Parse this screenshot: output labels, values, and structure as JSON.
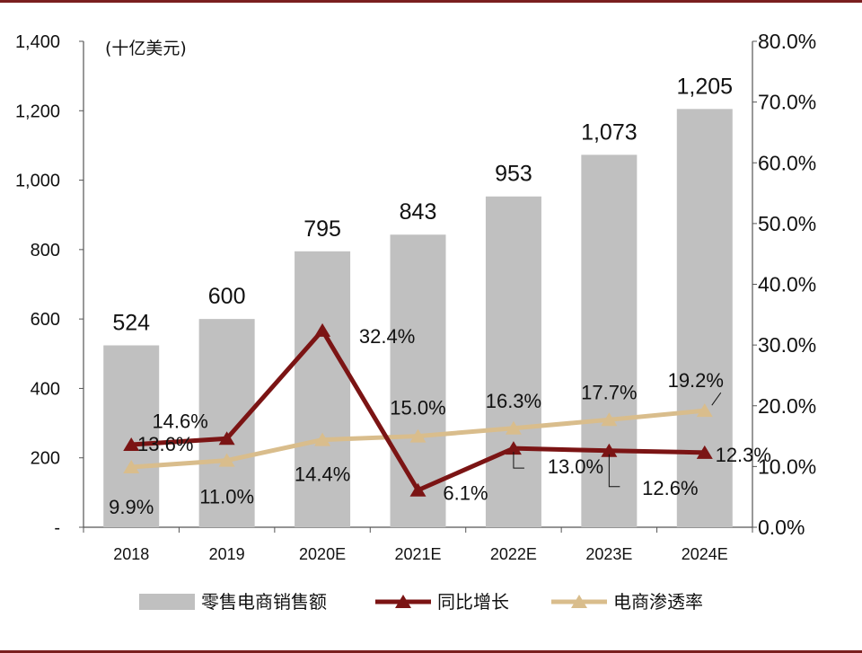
{
  "chart_data": {
    "type": "bar",
    "unit_label": "(十亿美元)",
    "categories": [
      "2018",
      "2019",
      "2020E",
      "2021E",
      "2022E",
      "2023E",
      "2024E"
    ],
    "left_axis": {
      "ylim": [
        0,
        1400
      ],
      "ticks": [
        "-",
        "200",
        "400",
        "600",
        "800",
        "1,000",
        "1,200",
        "1,400"
      ]
    },
    "right_axis": {
      "ylim": [
        0,
        0.8
      ],
      "ticks": [
        "0.0%",
        "10.0%",
        "20.0%",
        "30.0%",
        "40.0%",
        "50.0%",
        "60.0%",
        "70.0%",
        "80.0%"
      ]
    },
    "series": [
      {
        "name": "零售电商销售额",
        "type": "bar",
        "axis": "left",
        "color": "#c0c0c0",
        "values": [
          524,
          600,
          795,
          843,
          953,
          1073,
          1205
        ],
        "labels": [
          "524",
          "600",
          "795",
          "843",
          "953",
          "1,073",
          "1,205"
        ]
      },
      {
        "name": "同比增长",
        "type": "line",
        "axis": "right",
        "color": "#7b1414",
        "values": [
          0.136,
          0.146,
          0.324,
          0.061,
          0.13,
          0.126,
          0.123
        ],
        "labels": [
          "13.6%",
          "14.6%",
          "32.4%",
          "6.1%",
          "13.0%",
          "12.6%",
          "12.3%"
        ]
      },
      {
        "name": "电商渗透率",
        "type": "line",
        "axis": "right",
        "color": "#d9bd8c",
        "values": [
          0.099,
          0.11,
          0.144,
          0.15,
          0.163,
          0.177,
          0.192
        ],
        "labels": [
          "9.9%",
          "11.0%",
          "14.4%",
          "15.0%",
          "16.3%",
          "17.7%",
          "19.2%"
        ]
      }
    ],
    "legend_position": "bottom",
    "grid": false
  }
}
